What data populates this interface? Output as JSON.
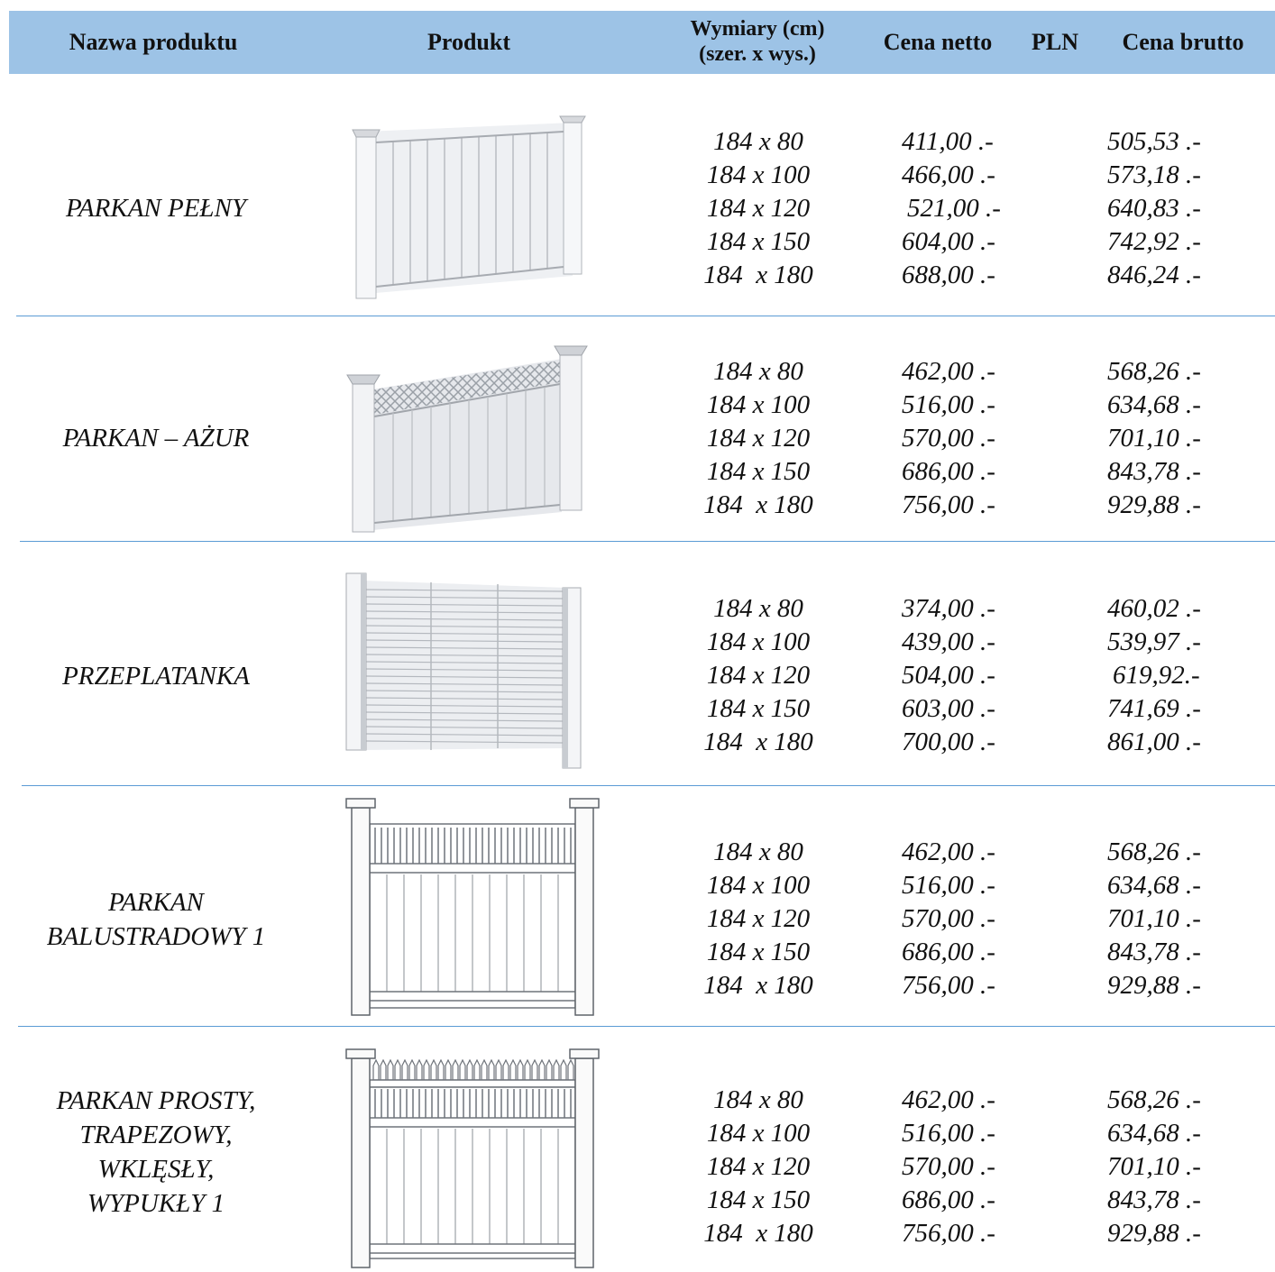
{
  "header": {
    "name": "Nazwa produktu",
    "product": "Produkt",
    "dims_line1": "Wymiary (cm)",
    "dims_line2": "(szer. x wys.)",
    "net": "Cena netto",
    "currency": "PLN",
    "gross": "Cena brutto"
  },
  "products": [
    {
      "name": "PARKAN PEŁNY",
      "dims": [
        "184 x 80",
        "184 x 100",
        "184 x 120",
        "184 x 150",
        "184  x 180"
      ],
      "net": [
        "411,00 .-",
        "466,00 .-",
        "521,00 .-",
        "604,00 .-",
        "688,00 .-"
      ],
      "gross": [
        "505,53 .-",
        "573,18 .-",
        "640,83 .-",
        "742,92 .-",
        "846,24 .-"
      ]
    },
    {
      "name": "PARKAN – AŻUR",
      "dims": [
        "184 x 80",
        "184 x 100",
        "184 x 120",
        "184 x 150",
        "184  x 180"
      ],
      "net": [
        "462,00 .-",
        "516,00 .-",
        "570,00 .-",
        "686,00 .-",
        "756,00 .-"
      ],
      "gross": [
        "568,26 .-",
        "634,68 .-",
        "701,10 .-",
        "843,78 .-",
        "929,88 .-"
      ]
    },
    {
      "name": "PRZEPLATANKA",
      "dims": [
        "184 x 80",
        "184 x 100",
        "184 x 120",
        "184 x 150",
        "184  x 180"
      ],
      "net": [
        "374,00 .-",
        "439,00 .-",
        "504,00 .-",
        "603,00 .-",
        "700,00 .-"
      ],
      "gross": [
        "460,02 .-",
        "539,97 .-",
        "619,92.-",
        "741,69 .-",
        "861,00 .-"
      ]
    },
    {
      "name_lines": [
        "PARKAN",
        "BALUSTRADOWY 1"
      ],
      "dims": [
        "184 x 80",
        "184 x 100",
        "184 x 120",
        "184 x 150",
        "184  x 180"
      ],
      "net": [
        "462,00 .-",
        "516,00 .-",
        "570,00 .-",
        "686,00 .-",
        "756,00 .-"
      ],
      "gross": [
        "568,26 .-",
        "634,68 .-",
        "701,10 .-",
        "843,78 .-",
        "929,88 .-"
      ]
    },
    {
      "name_lines": [
        "PARKAN PROSTY,",
        "TRAPEZOWY,",
        "WKLĘSŁY,",
        "WYPUKŁY 1"
      ],
      "dims": [
        "184 x 80",
        "184 x 100",
        "184 x 120",
        "184 x 150",
        "184  x 180"
      ],
      "net": [
        "462,00 .-",
        "516,00 .-",
        "570,00 .-",
        "686,00 .-",
        "756,00 .-"
      ],
      "gross": [
        "568,26 .-",
        "634,68 .-",
        "701,10 .-",
        "843,78 .-",
        "929,88 .-"
      ]
    }
  ]
}
